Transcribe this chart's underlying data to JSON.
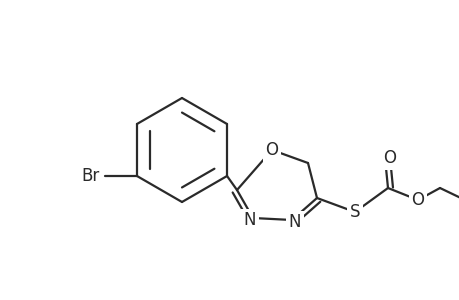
{
  "background_color": "#ffffff",
  "line_color": "#2a2a2a",
  "line_width": 1.6,
  "figsize": [
    4.6,
    3.0
  ],
  "dpi": 100,
  "xlim": [
    0,
    460
  ],
  "ylim": [
    0,
    300
  ]
}
